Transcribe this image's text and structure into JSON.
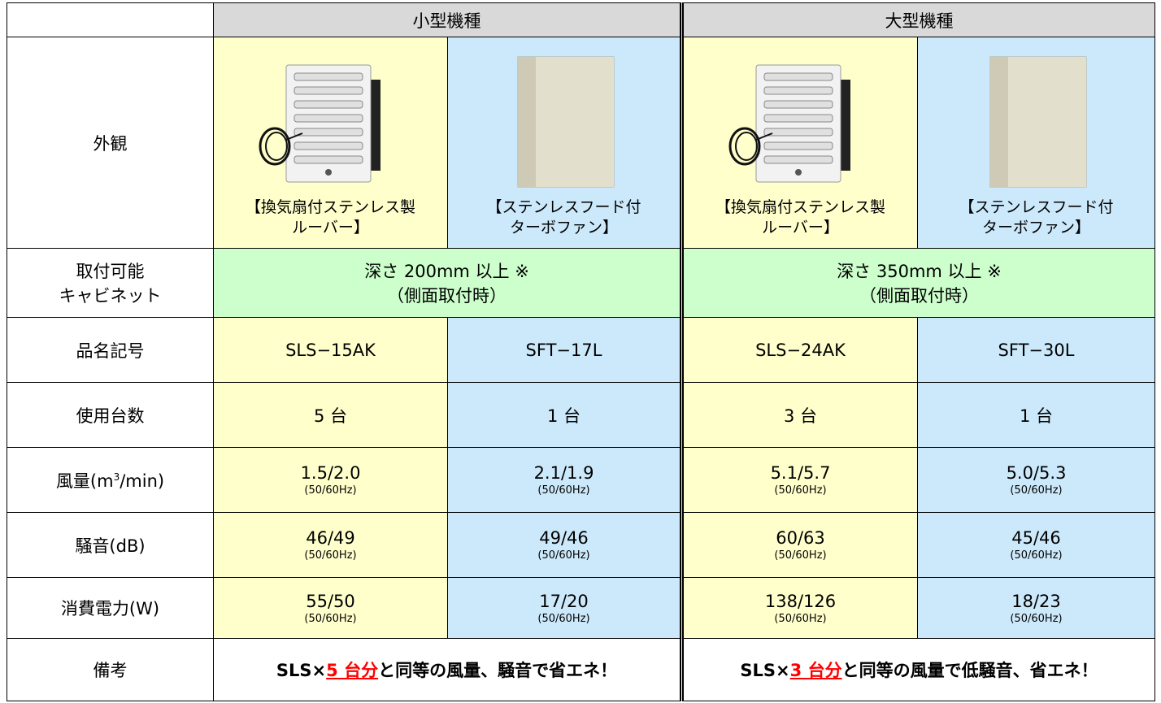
{
  "header": {
    "small": "小型機種",
    "large": "大型機種"
  },
  "appearance": {
    "label": "外観",
    "products": [
      {
        "caption": [
          "【換気扇付ステンレス製",
          "ルーバー】"
        ]
      },
      {
        "caption": [
          "【ステンレスフード付",
          "ターボファン】"
        ]
      },
      {
        "caption": [
          "【換気扇付ステンレス製",
          "ルーバー】"
        ]
      },
      {
        "caption": [
          "【ステンレスフード付",
          "ターボファン】"
        ]
      }
    ]
  },
  "cabinet": {
    "label": [
      "取付可能",
      "キャビネット"
    ],
    "small": [
      "深さ 200mm 以上 ※",
      "（側面取付時）"
    ],
    "large": [
      "深さ 350mm 以上 ※",
      "（側面取付時）"
    ]
  },
  "model": {
    "label": "品名記号",
    "cells": [
      "SLS−15AK",
      "SFT−17L",
      "SLS−24AK",
      "SFT−30L"
    ]
  },
  "units": {
    "label": "使用台数",
    "cells": [
      "5 台",
      "1 台",
      "3 台",
      "1 台"
    ]
  },
  "airflow": {
    "label": [
      "風量(m",
      "3",
      "/min)"
    ],
    "cells": [
      {
        "value": "1.5/2.0",
        "note": "(50/60Hz)"
      },
      {
        "value": "2.1/1.9",
        "note": "(50/60Hz)"
      },
      {
        "value": "5.1/5.7",
        "note": "(50/60Hz)"
      },
      {
        "value": "5.0/5.3",
        "note": "(50/60Hz)"
      }
    ]
  },
  "noise": {
    "label": "騒音(dB)",
    "cells": [
      {
        "value": "46/49",
        "note": "(50/60Hz)"
      },
      {
        "value": "49/46",
        "note": "(50/60Hz)"
      },
      {
        "value": "60/63",
        "note": "(50/60Hz)"
      },
      {
        "value": "45/46",
        "note": "(50/60Hz)"
      }
    ]
  },
  "power": {
    "label": "消費電力(W)",
    "cells": [
      {
        "value": "55/50",
        "note": "(50/60Hz)"
      },
      {
        "value": "17/20",
        "note": "(50/60Hz)"
      },
      {
        "value": "138/126",
        "note": "(50/60Hz)"
      },
      {
        "value": "18/23",
        "note": "(50/60Hz)"
      }
    ]
  },
  "remarks": {
    "label": "備考",
    "small": [
      "SLS×",
      "5 台分",
      "と同等の風量、騒音で省エネ！"
    ],
    "large": [
      "SLS×",
      "3 台分",
      "と同等の風量で低騒音、省エネ！"
    ]
  }
}
